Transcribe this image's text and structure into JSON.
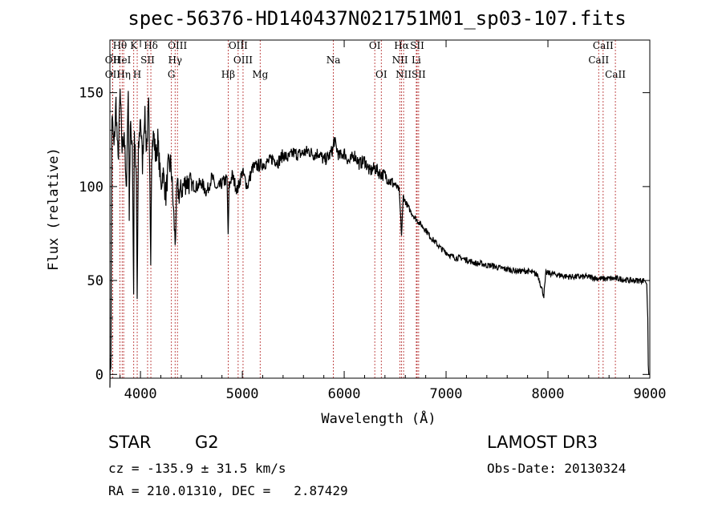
{
  "chart_data": {
    "type": "line",
    "title": "spec-56376-HD140437N021751M01_sp03-107.fits",
    "xlabel": "Wavelength (Å)",
    "ylabel": "Flux (relative)",
    "xlim": [
      3700,
      9000
    ],
    "ylim": [
      -2,
      178
    ],
    "x_ticks": [
      4000,
      5000,
      6000,
      7000,
      8000,
      9000
    ],
    "y_ticks": [
      0,
      50,
      100,
      150
    ],
    "series": [
      {
        "name": "flux",
        "x": [
          3700,
          3710,
          3720,
          3740,
          3760,
          3780,
          3800,
          3820,
          3840,
          3860,
          3880,
          3890,
          3900,
          3920,
          3933,
          3940,
          3960,
          3968,
          3980,
          4000,
          4020,
          4040,
          4060,
          4080,
          4101,
          4110,
          4130,
          4150,
          4170,
          4200,
          4220,
          4250,
          4270,
          4300,
          4320,
          4340,
          4360,
          4380,
          4400,
          4450,
          4500,
          4550,
          4600,
          4650,
          4700,
          4750,
          4800,
          4850,
          4861,
          4870,
          4900,
          4950,
          5000,
          5050,
          5100,
          5150,
          5200,
          5250,
          5300,
          5350,
          5400,
          5450,
          5500,
          5550,
          5600,
          5650,
          5700,
          5750,
          5800,
          5850,
          5890,
          5900,
          5950,
          6000,
          6050,
          6100,
          6150,
          6200,
          6250,
          6300,
          6350,
          6400,
          6450,
          6500,
          6540,
          6563,
          6580,
          6600,
          6650,
          6700,
          6750,
          6800,
          6850,
          6900,
          6950,
          7000,
          7050,
          7100,
          7150,
          7200,
          7250,
          7300,
          7350,
          7400,
          7450,
          7500,
          7600,
          7700,
          7800,
          7900,
          7960,
          7980,
          8000,
          8100,
          8200,
          8300,
          8400,
          8500,
          8600,
          8700,
          8800,
          8900,
          8950,
          8970,
          8980,
          8985,
          8990,
          9000
        ],
        "y": [
          0,
          8,
          138,
          120,
          145,
          112,
          150,
          120,
          130,
          95,
          152,
          88,
          130,
          125,
          45,
          128,
          100,
          40,
          118,
          138,
          112,
          140,
          120,
          142,
          65,
          120,
          128,
          115,
          125,
          100,
          108,
          95,
          110,
          112,
          92,
          70,
          100,
          96,
          98,
          103,
          101,
          100,
          102,
          97,
          105,
          98,
          102,
          104,
          72,
          100,
          106,
          98,
          108,
          100,
          110,
          111,
          112,
          113,
          115,
          113,
          117,
          115,
          118,
          117,
          118,
          119,
          117,
          118,
          114,
          116,
          120,
          125,
          116,
          118,
          113,
          117,
          112,
          114,
          108,
          110,
          107,
          106,
          103,
          101,
          98,
          74,
          95,
          92,
          87,
          83,
          80,
          77,
          73,
          70,
          67,
          65,
          63,
          62,
          62,
          61,
          60,
          59,
          59,
          58,
          58,
          57,
          56,
          55,
          55,
          53,
          42,
          54,
          54,
          53,
          52,
          52,
          52,
          51,
          51,
          51,
          50,
          50,
          50,
          48,
          30,
          5,
          0,
          0
        ]
      }
    ],
    "lines": [
      {
        "label": "Hθ",
        "wave": 3798,
        "row": 1
      },
      {
        "label": "OII",
        "wave": 3727,
        "row": 2
      },
      {
        "label": "OII",
        "wave": 3727,
        "row": 3
      },
      {
        "label": "HeI",
        "wave": 3820,
        "row": 2
      },
      {
        "label": "Hη",
        "wave": 3835,
        "row": 3
      },
      {
        "label": "K",
        "wave": 3934,
        "row": 1
      },
      {
        "label": "SII",
        "wave": 4070,
        "row": 2
      },
      {
        "label": "H",
        "wave": 3968,
        "row": 3
      },
      {
        "label": "Hδ",
        "wave": 4102,
        "row": 1
      },
      {
        "label": "OIII",
        "wave": 4363,
        "row": 1
      },
      {
        "label": "Hγ",
        "wave": 4340,
        "row": 2
      },
      {
        "label": "G",
        "wave": 4304,
        "row": 3
      },
      {
        "label": "OIII",
        "wave": 4959,
        "row": 1
      },
      {
        "label": "OIII",
        "wave": 5007,
        "row": 2
      },
      {
        "label": "Hβ",
        "wave": 4861,
        "row": 3
      },
      {
        "label": "Mg",
        "wave": 5175,
        "row": 3
      },
      {
        "label": "Na",
        "wave": 5894,
        "row": 2
      },
      {
        "label": "OI",
        "wave": 6300,
        "row": 1
      },
      {
        "label": "OI",
        "wave": 6364,
        "row": 3
      },
      {
        "label": "Hα",
        "wave": 6563,
        "row": 1
      },
      {
        "label": "NII",
        "wave": 6548,
        "row": 2
      },
      {
        "label": "NII",
        "wave": 6583,
        "row": 3
      },
      {
        "label": "SII",
        "wave": 6716,
        "row": 1
      },
      {
        "label": "Li",
        "wave": 6708,
        "row": 2
      },
      {
        "label": "SII",
        "wave": 6731,
        "row": 3
      },
      {
        "label": "CaII",
        "wave": 8542,
        "row": 1
      },
      {
        "label": "CaII",
        "wave": 8498,
        "row": 2
      },
      {
        "label": "CaII",
        "wave": 8662,
        "row": 3
      }
    ],
    "line_colors": {
      "marker": "#b22222",
      "spectrum": "#000000"
    }
  },
  "info": {
    "object_type": "STAR",
    "subclass": "G2",
    "survey": "LAMOST DR3",
    "velocity": "cz = -135.9 ± 31.5 km/s",
    "obs_date": "Obs-Date: 20130324",
    "coords": "RA = 210.01310, DEC =   2.87429"
  }
}
